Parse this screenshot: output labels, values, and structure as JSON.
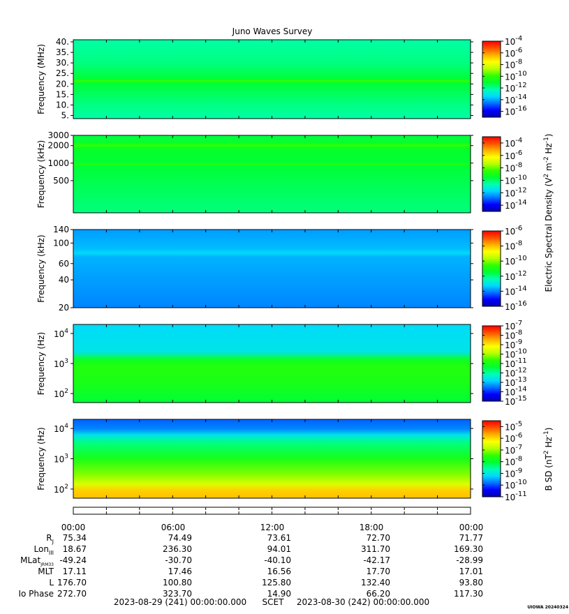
{
  "title": "Juno Waves Survey",
  "colors": {
    "colormap": [
      "#0000b0",
      "#0000ff",
      "#0070ff",
      "#00d8ff",
      "#00ffb0",
      "#00ff30",
      "#30ff00",
      "#b8ff00",
      "#ffff00",
      "#ffb000",
      "#ff5000",
      "#ff0000"
    ]
  },
  "colorbar_groups": [
    {
      "label_parts": [
        "Electric Spectral Density (V",
        "2",
        " m",
        "-2",
        " Hz",
        "-1",
        ")"
      ]
    },
    {
      "label_parts": [
        "B SD (nT",
        "2",
        " Hz",
        "-1",
        ")"
      ]
    }
  ],
  "chart_data": [
    {
      "type": "heatmap",
      "ylabel": "Frequency (MHz)",
      "yscale": "linear",
      "ylim": [
        3.5,
        41
      ],
      "yticks": [
        "5.",
        "10.",
        "15.",
        "20.",
        "25.",
        "30.",
        "35.",
        "40."
      ],
      "ytick_values": [
        5,
        10,
        15,
        20,
        25,
        30,
        35,
        40
      ],
      "colorbar": {
        "base": "10",
        "exponents": [
          "-4",
          "-6",
          "-8",
          "-10",
          "-12",
          "-14",
          "-16"
        ],
        "min": -17,
        "max": -4
      }
    },
    {
      "type": "heatmap",
      "ylabel": "Frequency (kHz)",
      "yscale": "log",
      "ylim": [
        140,
        3000
      ],
      "yticks": [
        "3000",
        "2000",
        "1000",
        "500"
      ],
      "ytick_values": [
        3000,
        2000,
        1000,
        500
      ],
      "colorbar": {
        "base": "10",
        "exponents": [
          "-4",
          "-6",
          "-8",
          "-10",
          "-12",
          "-14"
        ],
        "min": -15,
        "max": -3
      }
    },
    {
      "type": "heatmap",
      "ylabel": "Frequency (kHz)",
      "yscale": "log",
      "ylim": [
        20,
        140
      ],
      "yticks": [
        "140",
        "100",
        "60",
        "40",
        "20"
      ],
      "ytick_values": [
        140,
        100,
        60,
        40,
        20
      ],
      "colorbar": {
        "base": "10",
        "exponents": [
          "-6",
          "-8",
          "-10",
          "-12",
          "-14",
          "-16"
        ],
        "min": -16,
        "max": -6
      }
    },
    {
      "type": "heatmap",
      "ylabel": "Frequency (Hz)",
      "yscale": "log",
      "ylim": [
        50,
        20000
      ],
      "yticks": [
        {
          "base": "10",
          "exp": "4"
        },
        {
          "base": "10",
          "exp": "3"
        },
        {
          "base": "10",
          "exp": "2"
        }
      ],
      "ytick_values": [
        10000,
        1000,
        100
      ],
      "colorbar": {
        "base": "10",
        "exponents": [
          "-7",
          "-8",
          "-9",
          "-10",
          "-11",
          "-12",
          "-13",
          "-14",
          "-15"
        ],
        "min": -15,
        "max": -7
      }
    },
    {
      "type": "heatmap",
      "ylabel": "Frequency (Hz)",
      "yscale": "log",
      "ylim": [
        50,
        20000
      ],
      "yticks": [
        {
          "base": "10",
          "exp": "4"
        },
        {
          "base": "10",
          "exp": "3"
        },
        {
          "base": "10",
          "exp": "2"
        }
      ],
      "ytick_values": [
        10000,
        1000,
        100
      ],
      "colorbar": {
        "base": "10",
        "exponents": [
          "-5",
          "-6",
          "-7",
          "-8",
          "-9",
          "-10",
          "-11"
        ],
        "min": -11,
        "max": -4.5
      }
    }
  ],
  "time_axis": {
    "labels": [
      "00:00",
      "06:00",
      "12:00",
      "18:00",
      "00:00"
    ],
    "hours": [
      0,
      6,
      12,
      18,
      24
    ]
  },
  "ephemeris": [
    {
      "name": "R",
      "sub": "J",
      "values": [
        "75.34",
        "74.49",
        "73.61",
        "72.70",
        "71.77"
      ]
    },
    {
      "name": "Lon",
      "sub": "III",
      "values": [
        "18.67",
        "236.30",
        "94.01",
        "311.70",
        "169.30"
      ]
    },
    {
      "name": "MLat",
      "sub": "JRM33",
      "values": [
        "-49.24",
        "-30.70",
        "-40.10",
        "-42.17",
        "-28.99"
      ]
    },
    {
      "name": "MLT",
      "sub": "",
      "values": [
        "17.11",
        "17.46",
        "16.56",
        "17.70",
        "17.01"
      ]
    },
    {
      "name": "L",
      "sub": "",
      "values": [
        "176.70",
        "100.80",
        "125.80",
        "132.40",
        "93.80"
      ]
    },
    {
      "name": "Io Phase",
      "sub": "",
      "values": [
        "272.70",
        "323.70",
        "14.90",
        "66.20",
        "117.30"
      ]
    }
  ],
  "footer": {
    "start": "2023-08-29 (241) 00:00:00.000",
    "scet": "SCET",
    "end": "2023-08-30 (242) 00:00:00.000",
    "credit": "UIOWA 20240324"
  }
}
